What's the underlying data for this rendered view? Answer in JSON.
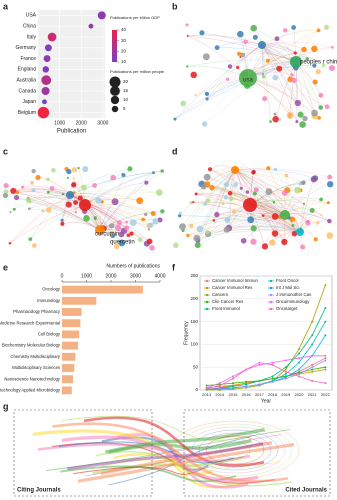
{
  "panel_labels": [
    "a",
    "b",
    "c",
    "d",
    "e",
    "f",
    "g"
  ],
  "chart_data": [
    {
      "type": "bubble",
      "categories": [
        "USA",
        "China",
        "Italy",
        "Germany",
        "France",
        "England",
        "Australia",
        "Canada",
        "Japan",
        "Belgium"
      ],
      "values": [
        2950,
        2450,
        650,
        480,
        420,
        360,
        380,
        350,
        300,
        250
      ],
      "sizes": [
        9,
        2,
        11,
        6,
        6,
        5,
        15,
        9,
        2,
        22
      ],
      "color_values": [
        14,
        17,
        32,
        12,
        15,
        12,
        25,
        20,
        6,
        42
      ],
      "x_label": "Publication",
      "xlim": [
        0,
        3100
      ],
      "xticks": [
        1000,
        2000,
        3000
      ],
      "color_title": "Publications per trillion GDP",
      "color_ticks": [
        10,
        20,
        30,
        40
      ],
      "colors": [
        "#7b3fc4",
        "#e8254a"
      ],
      "size_title": "Publications per million people",
      "size_ticks": [
        20,
        15,
        10,
        5
      ]
    },
    {
      "type": "hbar",
      "title": "Numbers of publications",
      "categories": [
        "Oncology",
        "Immunology",
        "Pharmacology Pharmacy",
        "Medicine Research Experimental",
        "Cell Biology",
        "Biochemistry Molecular Biology",
        "Chemistry Multidisciplinary",
        "Multidisciplinary Sciences",
        "Nanoscience Nanotechnology",
        "Biotechnology Applied Microbiology"
      ],
      "values": [
        3300,
        1400,
        800,
        750,
        700,
        650,
        550,
        500,
        450,
        400
      ],
      "color": "#f4b183",
      "xlim": [
        0,
        4000
      ],
      "xticks": [
        0,
        1000,
        2000,
        3000,
        4000
      ]
    },
    {
      "type": "line",
      "x_label": "Year",
      "y_label": "Frequency",
      "categories": [
        "2013",
        "2014",
        "2015",
        "2016",
        "2017",
        "2018",
        "2019",
        "2020",
        "2021",
        "2022"
      ],
      "ylim": [
        0,
        250
      ],
      "yticks": [
        0,
        50,
        100,
        150,
        200,
        250
      ],
      "grid": true,
      "series": [
        {
          "name": "Cancer Immunol Immun",
          "color": "#f8766d",
          "values": [
            5,
            8,
            10,
            15,
            20,
            25,
            30,
            40,
            55,
            70
          ]
        },
        {
          "name": "Cancer Immunol Res",
          "color": "#d89000",
          "values": [
            2,
            5,
            10,
            15,
            20,
            25,
            30,
            35,
            40,
            45
          ]
        },
        {
          "name": "Cancers",
          "color": "#a3a500",
          "values": [
            0,
            0,
            2,
            5,
            10,
            20,
            45,
            90,
            150,
            230
          ]
        },
        {
          "name": "Clin Cancer Res",
          "color": "#39b600",
          "values": [
            10,
            12,
            15,
            18,
            20,
            25,
            30,
            38,
            45,
            50
          ]
        },
        {
          "name": "Front Immunol",
          "color": "#00bf7d",
          "values": [
            2,
            4,
            8,
            12,
            20,
            30,
            50,
            80,
            120,
            180
          ]
        },
        {
          "name": "Front Oncol",
          "color": "#00bfc4",
          "values": [
            1,
            2,
            4,
            8,
            12,
            20,
            35,
            60,
            100,
            150
          ]
        },
        {
          "name": "Int J Mol Sci",
          "color": "#00b0f6",
          "values": [
            2,
            3,
            5,
            8,
            12,
            18,
            28,
            45,
            75,
            120
          ]
        },
        {
          "name": "J Immunother Can",
          "color": "#9590ff",
          "values": [
            2,
            3,
            5,
            8,
            12,
            18,
            25,
            35,
            50,
            65
          ]
        },
        {
          "name": "Oncoimmunology",
          "color": "#e76bf3",
          "values": [
            5,
            15,
            30,
            45,
            55,
            60,
            65,
            70,
            75,
            75
          ]
        },
        {
          "name": "Oncotarget",
          "color": "#ff62bc",
          "values": [
            3,
            10,
            25,
            45,
            60,
            55,
            40,
            30,
            20,
            15
          ]
        }
      ]
    }
  ],
  "networks": {
    "b": [
      "usa",
      "peoples r china"
    ],
    "c": [
      "curcumin",
      "quercetin"
    ]
  },
  "overlay": {
    "left_label": "Citing Journals",
    "right_label": "Cited Journals"
  }
}
